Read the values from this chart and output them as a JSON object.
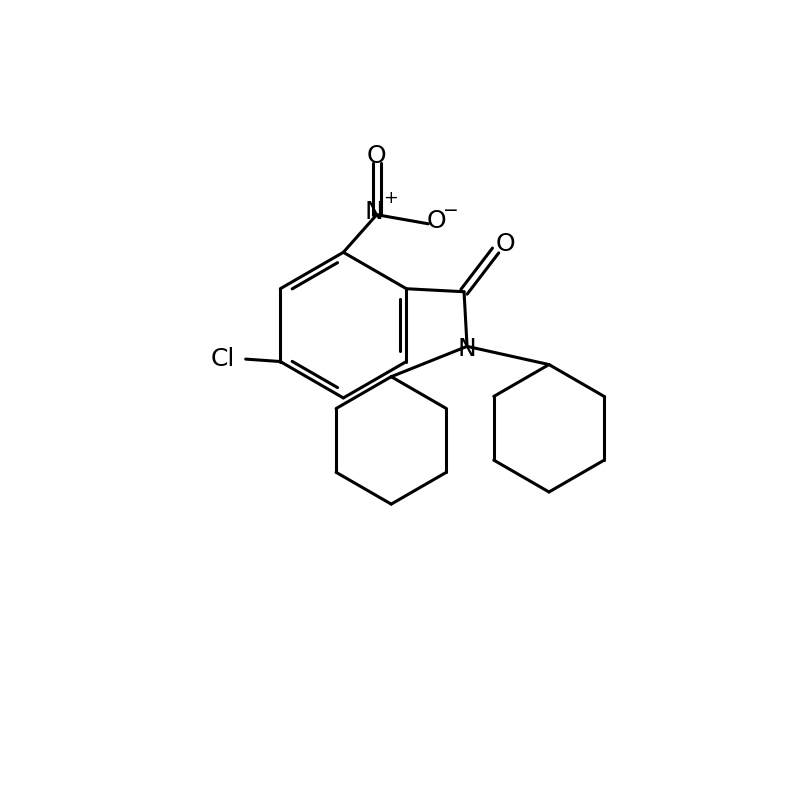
{
  "background_color": "#ffffff",
  "line_color": "#000000",
  "line_width": 2.2,
  "font_size": 18,
  "figsize": [
    8.12,
    7.88
  ],
  "dpi": 100,
  "xlim": [
    0,
    10
  ],
  "ylim": [
    0,
    10
  ]
}
